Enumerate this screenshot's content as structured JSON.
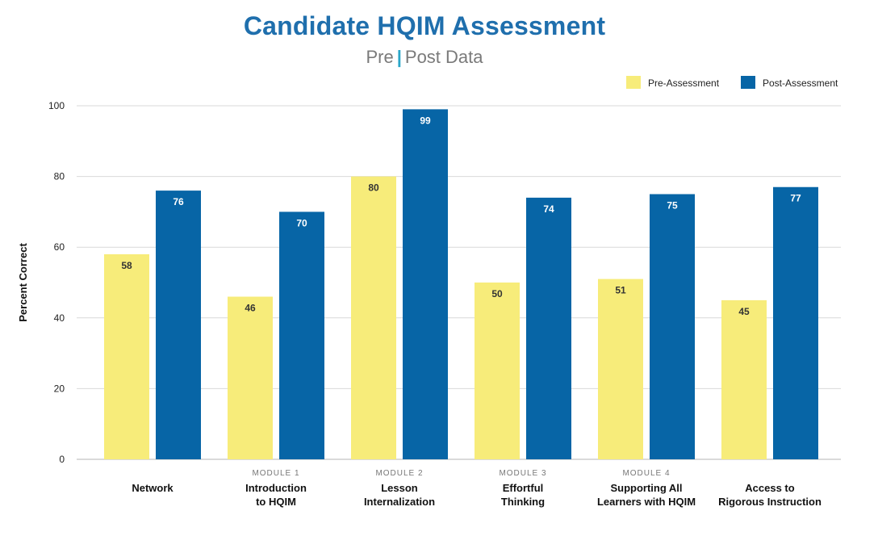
{
  "chart_data": {
    "type": "bar",
    "title": "Candidate HQIM Assessment",
    "subtitle_pre": "Pre",
    "subtitle_sep": "|",
    "subtitle_post": "Post Data",
    "ylabel": "Percent Correct",
    "ylim": [
      0,
      100
    ],
    "yticks": [
      0,
      20,
      40,
      60,
      80,
      100
    ],
    "grid": true,
    "legend_position": "top-right",
    "categories": [
      {
        "module": "",
        "lines": [
          "Network"
        ]
      },
      {
        "module": "MODULE 1",
        "lines": [
          "Introduction",
          "to HQIM"
        ]
      },
      {
        "module": "MODULE 2",
        "lines": [
          "Lesson",
          "Internalization"
        ]
      },
      {
        "module": "MODULE 3",
        "lines": [
          "Effortful",
          "Thinking"
        ]
      },
      {
        "module": "MODULE 4",
        "lines": [
          "Supporting All",
          "Learners with HQIM"
        ]
      },
      {
        "module": "",
        "lines": [
          "Access to",
          "Rigorous Instruction"
        ]
      }
    ],
    "series": [
      {
        "name": "Pre-Assessment",
        "color": "#f7ec7a",
        "label_color": "#333333",
        "values": [
          58,
          46,
          80,
          50,
          51,
          45
        ]
      },
      {
        "name": "Post-Assessment",
        "color": "#0765a6",
        "label_color": "#ffffff",
        "values": [
          76,
          70,
          99,
          74,
          75,
          77
        ]
      }
    ]
  }
}
